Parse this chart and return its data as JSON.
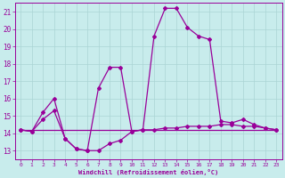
{
  "xlabel": "Windchill (Refroidissement éolien,°C)",
  "background_color": "#c8ecec",
  "grid_color": "#aad4d4",
  "line_color": "#990099",
  "xlim": [
    -0.5,
    23.5
  ],
  "ylim": [
    12.5,
    21.5
  ],
  "xticks": [
    0,
    1,
    2,
    3,
    4,
    5,
    6,
    7,
    8,
    9,
    10,
    11,
    12,
    13,
    14,
    15,
    16,
    17,
    18,
    19,
    20,
    21,
    22,
    23
  ],
  "yticks": [
    13,
    14,
    15,
    16,
    17,
    18,
    19,
    20,
    21
  ],
  "curve_temp_x": [
    0,
    1,
    2,
    3,
    4,
    5,
    6,
    7,
    8,
    9,
    10,
    11,
    12,
    13,
    14,
    15,
    16,
    17,
    18,
    19,
    20,
    21,
    22,
    23
  ],
  "curve_temp_y": [
    14.2,
    14.2,
    14.2,
    14.2,
    14.2,
    14.2,
    14.2,
    14.2,
    14.2,
    14.2,
    14.2,
    14.2,
    14.2,
    14.2,
    14.2,
    14.2,
    14.2,
    14.2,
    14.2,
    14.2,
    14.2,
    14.2,
    14.2,
    14.2
  ],
  "curve_obs_x": [
    0,
    1,
    2,
    3,
    4,
    5,
    6,
    7,
    8,
    9,
    10,
    11,
    12,
    13,
    14,
    15,
    16,
    17,
    18,
    19,
    20,
    21,
    22,
    23
  ],
  "curve_obs_y": [
    14.2,
    14.1,
    14.8,
    15.3,
    13.7,
    13.1,
    13.0,
    13.0,
    13.4,
    13.6,
    14.1,
    14.2,
    14.2,
    14.3,
    14.3,
    14.4,
    14.4,
    14.4,
    14.5,
    14.5,
    14.4,
    14.4,
    14.3,
    14.2
  ],
  "curve_wind_x": [
    0,
    1,
    2,
    3,
    4,
    5,
    6,
    7,
    8,
    9,
    10,
    11,
    12,
    13,
    14,
    15,
    16,
    17,
    18,
    19,
    20,
    21,
    22,
    23
  ],
  "curve_wind_y": [
    14.2,
    14.1,
    15.2,
    16.0,
    13.7,
    13.1,
    13.0,
    16.6,
    17.8,
    17.8,
    14.1,
    14.2,
    19.6,
    21.2,
    21.2,
    20.1,
    19.6,
    19.4,
    14.7,
    14.6,
    14.8,
    14.5,
    14.3,
    14.2
  ]
}
